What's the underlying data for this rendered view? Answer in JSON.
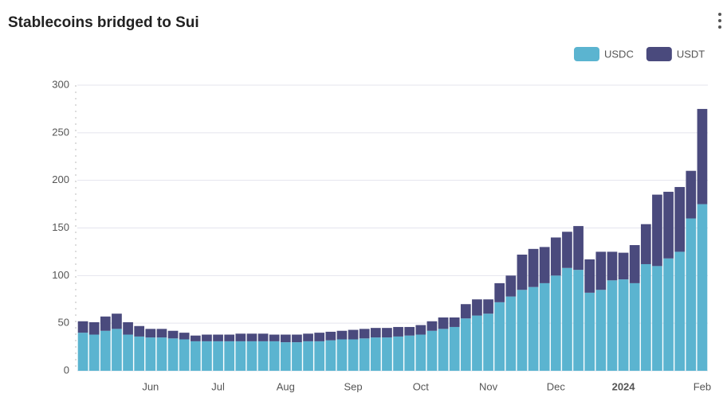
{
  "chart_data": {
    "type": "stacked-bar",
    "title": "Stablecoins bridged to Sui",
    "categories": [
      null,
      null,
      null,
      null,
      null,
      null,
      "Jun",
      null,
      null,
      null,
      null,
      null,
      "Jul",
      null,
      null,
      null,
      null,
      null,
      "Aug",
      null,
      null,
      null,
      null,
      null,
      "Sep",
      null,
      null,
      null,
      null,
      null,
      "Oct",
      null,
      null,
      null,
      null,
      null,
      "Nov",
      null,
      null,
      null,
      null,
      null,
      "Dec",
      null,
      null,
      null,
      null,
      null,
      "2024",
      null,
      null,
      null,
      null,
      null,
      null,
      "Feb"
    ],
    "series": [
      {
        "name": "USDC",
        "color": "#5bb4d0",
        "values": [
          40,
          38,
          42,
          44,
          38,
          36,
          35,
          35,
          34,
          33,
          31,
          31,
          31,
          31,
          31,
          31,
          31,
          31,
          30,
          30,
          31,
          31,
          32,
          33,
          33,
          34,
          35,
          35,
          36,
          37,
          38,
          42,
          44,
          46,
          55,
          58,
          60,
          72,
          78,
          85,
          88,
          92,
          100,
          108,
          106,
          82,
          85,
          95,
          96,
          92,
          112,
          110,
          118,
          125,
          160,
          175
        ]
      },
      {
        "name": "USDT",
        "color": "#4a4a7d",
        "values": [
          12,
          13,
          15,
          16,
          13,
          11,
          9,
          9,
          8,
          7,
          6,
          7,
          7,
          7,
          8,
          8,
          8,
          7,
          8,
          8,
          8,
          9,
          9,
          9,
          10,
          10,
          10,
          10,
          10,
          9,
          10,
          10,
          12,
          10,
          15,
          17,
          15,
          20,
          22,
          37,
          40,
          38,
          40,
          38,
          46,
          35,
          40,
          30,
          28,
          40,
          42,
          75,
          70,
          68,
          50,
          100
        ]
      }
    ],
    "ylim": [
      0,
      300
    ],
    "yticks": [
      0,
      50,
      100,
      150,
      200,
      250,
      300
    ],
    "grid": true
  }
}
